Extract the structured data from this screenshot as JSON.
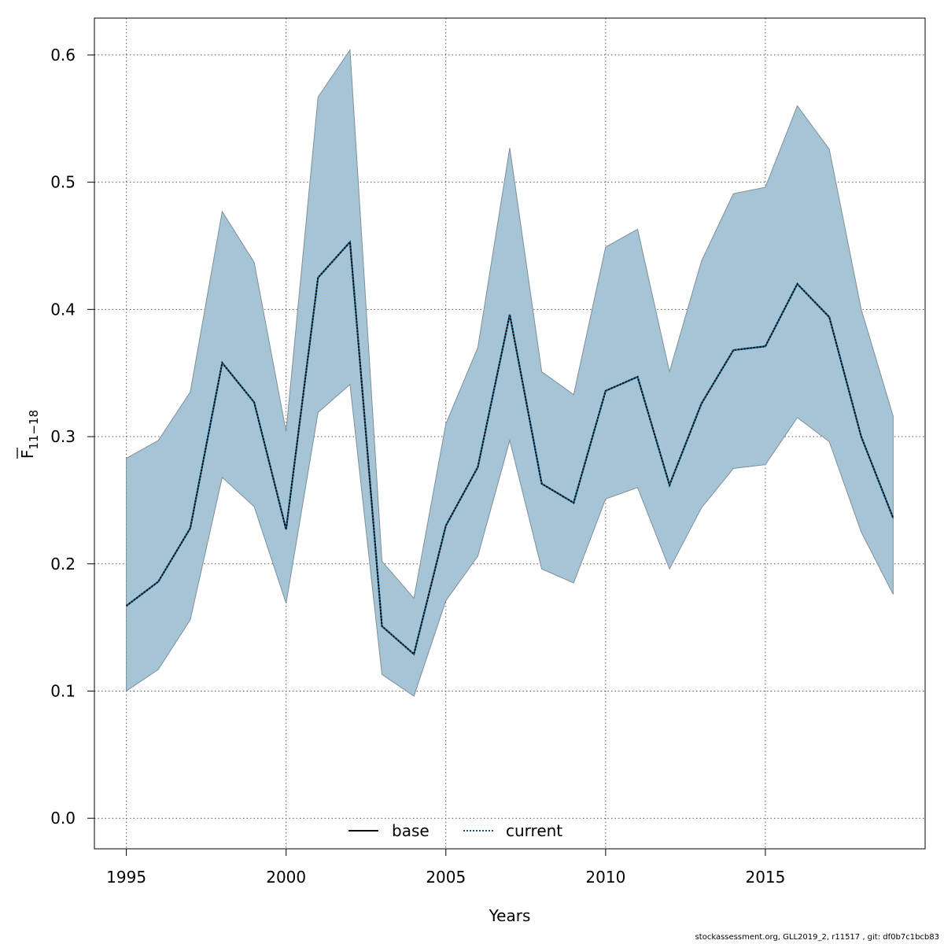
{
  "chart_data": {
    "type": "line",
    "xlabel": "Years",
    "ylabel_main": "F",
    "ylabel_sub": "11−18",
    "xlim": [
      1994,
      2020
    ],
    "ylim": [
      -0.024,
      0.629
    ],
    "xticks": [
      1995,
      2000,
      2005,
      2010,
      2015
    ],
    "xtick_labels": [
      "1995",
      "2000",
      "2005",
      "2010",
      "2015"
    ],
    "yticks": [
      0.0,
      0.1,
      0.2,
      0.3,
      0.4,
      0.5,
      0.6
    ],
    "ytick_labels": [
      "0.0",
      "0.1",
      "0.2",
      "0.3",
      "0.4",
      "0.5",
      "0.6"
    ],
    "grid": true,
    "legend_position": "bottom-center",
    "colors": {
      "band_fill": "#a5c4d5",
      "band_edge": "#7f8f99",
      "current_line": "#0a5a88",
      "base_line": "#000000",
      "grid": "#555555"
    },
    "x": [
      1995,
      1996,
      1997,
      1998,
      1999,
      2000,
      2001,
      2002,
      2003,
      2004,
      2005,
      2006,
      2007,
      2008,
      2009,
      2010,
      2011,
      2012,
      2013,
      2014,
      2015,
      2016,
      2017,
      2018,
      2019
    ],
    "series": [
      {
        "name": "base",
        "style": "solid",
        "values": [
          0.167,
          0.186,
          0.228,
          0.358,
          0.327,
          0.227,
          0.425,
          0.453,
          0.151,
          0.129,
          0.23,
          0.276,
          0.396,
          0.263,
          0.248,
          0.336,
          0.347,
          0.262,
          0.326,
          0.368,
          0.371,
          0.42,
          0.394,
          0.3,
          0.236
        ]
      },
      {
        "name": "current",
        "style": "dotted",
        "values": [
          0.167,
          0.186,
          0.228,
          0.358,
          0.327,
          0.227,
          0.425,
          0.453,
          0.151,
          0.129,
          0.23,
          0.276,
          0.396,
          0.263,
          0.248,
          0.336,
          0.347,
          0.262,
          0.326,
          0.368,
          0.371,
          0.42,
          0.394,
          0.3,
          0.236
        ]
      }
    ],
    "band": {
      "lower": [
        0.1,
        0.117,
        0.156,
        0.268,
        0.245,
        0.169,
        0.319,
        0.341,
        0.113,
        0.096,
        0.171,
        0.206,
        0.297,
        0.196,
        0.185,
        0.251,
        0.26,
        0.196,
        0.244,
        0.275,
        0.278,
        0.315,
        0.296,
        0.225,
        0.176
      ],
      "upper": [
        0.283,
        0.297,
        0.335,
        0.477,
        0.437,
        0.304,
        0.567,
        0.604,
        0.202,
        0.173,
        0.31,
        0.37,
        0.527,
        0.351,
        0.333,
        0.449,
        0.463,
        0.351,
        0.438,
        0.491,
        0.496,
        0.56,
        0.526,
        0.4,
        0.316
      ]
    }
  },
  "legend": {
    "items": [
      {
        "label": "base",
        "style": "solid",
        "color": "#000000"
      },
      {
        "label": "current",
        "style": "dotted",
        "color": "#0a5a88"
      }
    ]
  },
  "footer": {
    "text": "stockassessment.org, GLL2019_2, r11517 , git: df0b7c1bcb83"
  }
}
